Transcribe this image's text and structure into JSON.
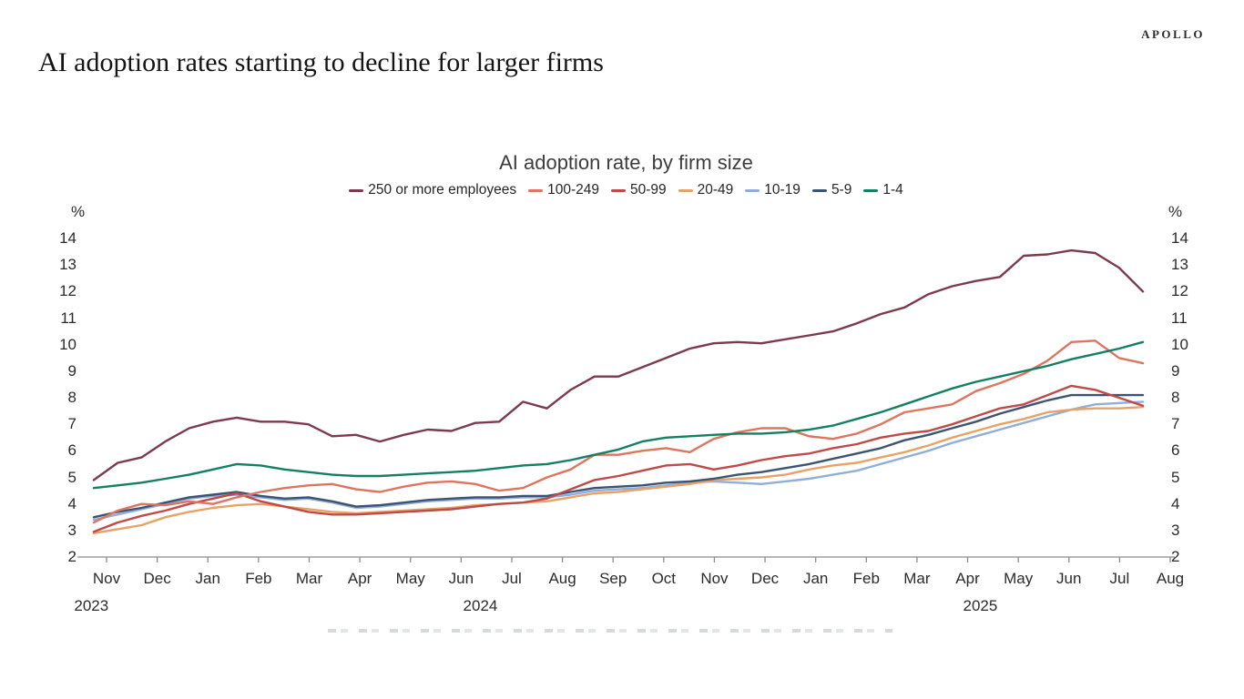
{
  "page": {
    "brand": "APOLLO",
    "title": "AI adoption rates starting to decline for larger firms"
  },
  "chart_data": {
    "type": "line",
    "title": "AI adoption rate, by firm size",
    "unit_label": "%",
    "ylim": [
      2,
      14
    ],
    "y_ticks": [
      14,
      13,
      12,
      11,
      10,
      9,
      8,
      7,
      6,
      5,
      4,
      3,
      2
    ],
    "grid": false,
    "legend_position": "top",
    "x_month_labels": [
      "Nov",
      "Dec",
      "Jan",
      "Feb",
      "Mar",
      "Apr",
      "May",
      "Jun",
      "Jul",
      "Aug",
      "Sep",
      "Oct",
      "Nov",
      "Dec",
      "Jan",
      "Feb",
      "Mar",
      "Apr",
      "May",
      "Jun",
      "Jul",
      "Aug"
    ],
    "x_year_labels": [
      "2023",
      "2024",
      "2025"
    ],
    "x_range_note": "biweekly survey periods, Nov 2023 - Aug 2025",
    "axis_color": "#8c8c8c",
    "series": [
      {
        "name": "250 or more employees",
        "color": "#7C3A4D",
        "values": [
          4.9,
          5.55,
          5.75,
          6.35,
          6.85,
          7.1,
          7.25,
          7.1,
          7.1,
          7.0,
          6.55,
          6.6,
          6.35,
          6.6,
          6.8,
          6.75,
          7.05,
          7.1,
          7.85,
          7.6,
          8.3,
          8.8,
          8.8,
          9.15,
          9.5,
          9.85,
          10.05,
          10.1,
          10.05,
          10.2,
          10.35,
          10.5,
          10.8,
          11.15,
          11.4,
          11.9,
          12.2,
          12.4,
          12.55,
          13.35,
          13.4,
          13.55,
          13.45,
          12.9,
          12.0
        ]
      },
      {
        "name": "100-249",
        "color": "#DD7560",
        "values": [
          3.3,
          3.75,
          4.0,
          3.95,
          4.1,
          4.0,
          4.25,
          4.45,
          4.6,
          4.7,
          4.75,
          4.55,
          4.45,
          4.65,
          4.8,
          4.85,
          4.75,
          4.5,
          4.6,
          5.0,
          5.3,
          5.85,
          5.85,
          6.0,
          6.1,
          5.95,
          6.45,
          6.7,
          6.85,
          6.85,
          6.55,
          6.45,
          6.65,
          7.0,
          7.45,
          7.6,
          7.75,
          8.25,
          8.55,
          8.9,
          9.4,
          10.1,
          10.15,
          9.5,
          9.3
        ]
      },
      {
        "name": "50-99",
        "color": "#BF4A47",
        "values": [
          2.95,
          3.3,
          3.55,
          3.75,
          4.0,
          4.2,
          4.4,
          4.1,
          3.9,
          3.7,
          3.6,
          3.6,
          3.65,
          3.7,
          3.75,
          3.8,
          3.9,
          4.0,
          4.05,
          4.2,
          4.55,
          4.9,
          5.05,
          5.25,
          5.45,
          5.5,
          5.3,
          5.45,
          5.65,
          5.8,
          5.9,
          6.1,
          6.25,
          6.5,
          6.65,
          6.75,
          7.0,
          7.3,
          7.6,
          7.75,
          8.1,
          8.45,
          8.3,
          8.0,
          7.7
        ]
      },
      {
        "name": "20-49",
        "color": "#E9A266",
        "values": [
          2.9,
          3.05,
          3.2,
          3.5,
          3.7,
          3.85,
          3.95,
          4.0,
          3.9,
          3.8,
          3.7,
          3.65,
          3.7,
          3.75,
          3.8,
          3.85,
          3.95,
          4.0,
          4.05,
          4.1,
          4.25,
          4.4,
          4.45,
          4.55,
          4.65,
          4.75,
          4.9,
          4.95,
          5.0,
          5.1,
          5.3,
          5.45,
          5.55,
          5.75,
          5.95,
          6.2,
          6.5,
          6.75,
          7.0,
          7.2,
          7.45,
          7.55,
          7.6,
          7.6,
          7.65
        ]
      },
      {
        "name": "10-19",
        "color": "#8FAEDB",
        "values": [
          3.4,
          3.6,
          3.8,
          4.0,
          4.2,
          4.3,
          4.35,
          4.25,
          4.15,
          4.2,
          4.05,
          3.85,
          3.9,
          4.0,
          4.1,
          4.15,
          4.2,
          4.2,
          4.25,
          4.25,
          4.35,
          4.5,
          4.55,
          4.6,
          4.7,
          4.8,
          4.85,
          4.8,
          4.75,
          4.85,
          4.95,
          5.1,
          5.25,
          5.5,
          5.75,
          6.0,
          6.3,
          6.55,
          6.8,
          7.05,
          7.3,
          7.55,
          7.75,
          7.8,
          7.85
        ]
      },
      {
        "name": "5-9",
        "color": "#3D5470",
        "values": [
          3.5,
          3.7,
          3.85,
          4.05,
          4.25,
          4.35,
          4.45,
          4.3,
          4.2,
          4.25,
          4.1,
          3.9,
          3.95,
          4.05,
          4.15,
          4.2,
          4.25,
          4.25,
          4.3,
          4.3,
          4.45,
          4.6,
          4.65,
          4.7,
          4.8,
          4.85,
          4.95,
          5.1,
          5.2,
          5.35,
          5.5,
          5.7,
          5.9,
          6.1,
          6.4,
          6.6,
          6.85,
          7.1,
          7.4,
          7.65,
          7.9,
          8.1,
          8.1,
          8.1,
          8.1
        ]
      },
      {
        "name": "1-4",
        "color": "#147F62",
        "values": [
          4.6,
          4.7,
          4.8,
          4.95,
          5.1,
          5.3,
          5.5,
          5.45,
          5.3,
          5.2,
          5.1,
          5.05,
          5.05,
          5.1,
          5.15,
          5.2,
          5.25,
          5.35,
          5.45,
          5.5,
          5.65,
          5.85,
          6.05,
          6.35,
          6.5,
          6.55,
          6.6,
          6.65,
          6.65,
          6.7,
          6.8,
          6.95,
          7.2,
          7.45,
          7.75,
          8.05,
          8.35,
          8.6,
          8.8,
          9.0,
          9.2,
          9.45,
          9.65,
          9.85,
          10.1
        ]
      }
    ]
  }
}
